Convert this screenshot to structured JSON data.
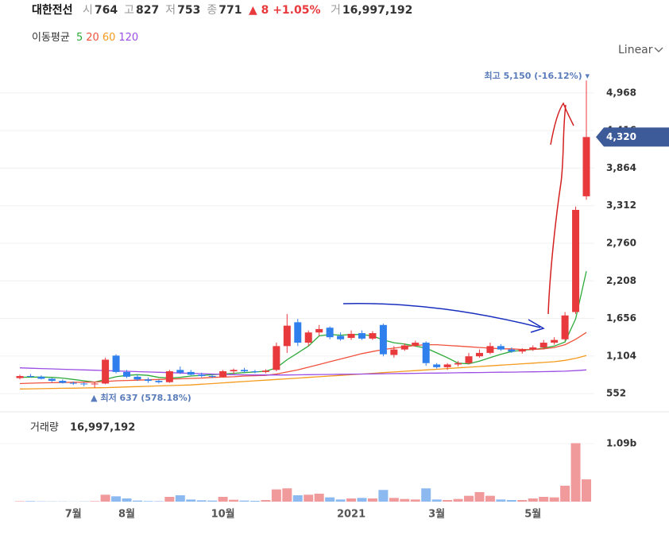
{
  "header": {
    "name": "대한전선",
    "fields": [
      {
        "label": "시",
        "value": "764"
      },
      {
        "label": "고",
        "value": "827"
      },
      {
        "label": "저",
        "value": "753"
      },
      {
        "label": "종",
        "value": "771"
      }
    ],
    "change": "▲ 8 +1.05%",
    "volume": {
      "label": "거",
      "value": "16,997,192"
    }
  },
  "moving_average_label": "이동평균",
  "scale_mode": "Linear",
  "chart_data": [
    {
      "type": "candlestick",
      "categories": [
        null,
        null,
        null,
        null,
        null,
        "7월",
        null,
        null,
        null,
        null,
        "8월",
        null,
        null,
        null,
        null,
        null,
        null,
        null,
        null,
        "10월",
        null,
        null,
        null,
        null,
        null,
        null,
        null,
        null,
        null,
        null,
        null,
        "2021",
        null,
        null,
        null,
        null,
        null,
        null,
        null,
        "3월",
        null,
        null,
        null,
        null,
        null,
        null,
        null,
        null,
        "5월",
        null,
        null,
        null,
        null,
        null
      ],
      "open": [
        780,
        810,
        800,
        770,
        740,
        710,
        700,
        690,
        700,
        1110,
        870,
        800,
        760,
        740,
        720,
        900,
        870,
        830,
        810,
        800,
        880,
        900,
        880,
        870,
        900,
        1250,
        1600,
        1300,
        1450,
        1520,
        1400,
        1370,
        1440,
        1360,
        1560,
        1120,
        1200,
        1260,
        1300,
        980,
        940,
        980,
        1000,
        1100,
        1150,
        1250,
        1200,
        1170,
        1200,
        1230,
        1300,
        1350,
        1750,
        3450
      ],
      "high": [
        830,
        840,
        820,
        780,
        760,
        730,
        720,
        720,
        1080,
        1130,
        900,
        830,
        790,
        760,
        900,
        950,
        900,
        860,
        830,
        900,
        920,
        930,
        900,
        910,
        1300,
        1720,
        1650,
        1480,
        1560,
        1540,
        1450,
        1480,
        1480,
        1470,
        1580,
        1250,
        1290,
        1330,
        1320,
        1000,
        1000,
        1030,
        1150,
        1200,
        1300,
        1280,
        1230,
        1220,
        1260,
        1340,
        1380,
        1750,
        3300,
        5150
      ],
      "low": [
        760,
        790,
        760,
        720,
        700,
        680,
        660,
        637,
        690,
        850,
        780,
        740,
        710,
        700,
        710,
        840,
        820,
        790,
        780,
        790,
        840,
        860,
        850,
        850,
        880,
        1150,
        1250,
        1250,
        1400,
        1350,
        1330,
        1340,
        1340,
        1340,
        1100,
        1080,
        1180,
        1240,
        960,
        920,
        900,
        950,
        980,
        1080,
        1130,
        1180,
        1150,
        1140,
        1180,
        1200,
        1270,
        1330,
        1720,
        3400
      ],
      "close": [
        810,
        800,
        770,
        740,
        710,
        700,
        690,
        700,
        1050,
        870,
        800,
        760,
        740,
        720,
        880,
        860,
        830,
        810,
        800,
        880,
        900,
        880,
        870,
        890,
        1250,
        1550,
        1300,
        1450,
        1500,
        1380,
        1350,
        1430,
        1360,
        1440,
        1130,
        1200,
        1260,
        1300,
        1000,
        940,
        980,
        1000,
        1100,
        1150,
        1250,
        1200,
        1170,
        1200,
        1230,
        1300,
        1340,
        1700,
        3250,
        4320
      ],
      "up_color": "#e8393d",
      "down_color": "#2f80ed",
      "series": [
        {
          "name": "5",
          "color": "#2eaa3a",
          "values": [
            790,
            795,
            795,
            790,
            780,
            760,
            740,
            720,
            760,
            800,
            820,
            830,
            820,
            790,
            780,
            790,
            810,
            820,
            830,
            840,
            850,
            860,
            870,
            880,
            930,
            1050,
            1150,
            1250,
            1400,
            1420,
            1410,
            1420,
            1420,
            1400,
            1340,
            1300,
            1280,
            1250,
            1220,
            1150,
            1080,
            1000,
            990,
            1030,
            1080,
            1130,
            1170,
            1190,
            1200,
            1220,
            1250,
            1310,
            1650,
            2350
          ]
        },
        {
          "name": "20",
          "color": "#f0523c",
          "values": [
            700,
            705,
            710,
            712,
            715,
            718,
            720,
            722,
            730,
            740,
            745,
            750,
            755,
            760,
            765,
            770,
            775,
            780,
            790,
            795,
            800,
            810,
            815,
            820,
            840,
            870,
            900,
            940,
            980,
            1020,
            1060,
            1100,
            1140,
            1170,
            1200,
            1220,
            1240,
            1260,
            1270,
            1270,
            1260,
            1250,
            1240,
            1230,
            1220,
            1210,
            1210,
            1200,
            1200,
            1210,
            1230,
            1270,
            1350,
            1450
          ]
        },
        {
          "name": "60",
          "color": "#f59a1c",
          "values": [
            620,
            622,
            625,
            628,
            630,
            632,
            635,
            638,
            640,
            645,
            650,
            655,
            660,
            665,
            670,
            675,
            680,
            690,
            700,
            710,
            720,
            730,
            740,
            750,
            760,
            770,
            780,
            790,
            800,
            810,
            820,
            830,
            840,
            850,
            860,
            870,
            880,
            890,
            900,
            910,
            920,
            930,
            940,
            950,
            960,
            970,
            980,
            990,
            1000,
            1010,
            1020,
            1040,
            1070,
            1110
          ]
        },
        {
          "name": "120",
          "color": "#9b4ee6",
          "values": [
            930,
            925,
            920,
            915,
            910,
            905,
            900,
            895,
            890,
            885,
            880,
            875,
            870,
            865,
            860,
            855,
            850,
            845,
            840,
            835,
            830,
            828,
            826,
            825,
            825,
            826,
            828,
            830,
            832,
            834,
            836,
            838,
            840,
            842,
            844,
            846,
            848,
            850,
            852,
            854,
            856,
            858,
            860,
            862,
            864,
            866,
            868,
            870,
            872,
            875,
            878,
            882,
            890,
            900
          ]
        }
      ],
      "ylim": [
        320,
        5340
      ],
      "yticks": [
        {
          "value": 552,
          "label": "552"
        },
        {
          "value": 1104,
          "label": "1,104"
        },
        {
          "value": 1656,
          "label": "1,656"
        },
        {
          "value": 2208,
          "label": "2,208"
        },
        {
          "value": 2760,
          "label": "2,760"
        },
        {
          "value": 3312,
          "label": "3,312"
        },
        {
          "value": 3864,
          "label": "3,864"
        },
        {
          "value": 4416,
          "label": "4,416"
        },
        {
          "value": 4968,
          "label": "4,968"
        }
      ],
      "grid": true,
      "high_annotation": "최고 5,150 (-16.12%) ▾",
      "low_annotation": "▲ 최저 637 (578.18%)",
      "current_price": {
        "value": 4320,
        "label": "4,320"
      },
      "current_color": "#3d5a99"
    },
    {
      "type": "bar",
      "title": "거래량",
      "total_label": "16,997,192",
      "values": [
        8000000,
        10000000,
        6000000,
        5000000,
        4000000,
        3000000,
        5000000,
        9000000,
        130000000,
        100000000,
        60000000,
        20000000,
        10000000,
        8000000,
        90000000,
        120000000,
        40000000,
        25000000,
        20000000,
        90000000,
        35000000,
        20000000,
        15000000,
        30000000,
        230000000,
        250000000,
        120000000,
        130000000,
        150000000,
        80000000,
        40000000,
        60000000,
        70000000,
        60000000,
        220000000,
        70000000,
        50000000,
        40000000,
        250000000,
        40000000,
        30000000,
        50000000,
        110000000,
        180000000,
        110000000,
        40000000,
        30000000,
        30000000,
        60000000,
        90000000,
        80000000,
        300000000,
        1100000000,
        420000000
      ],
      "up_color": "#f19a9c",
      "down_color": "#8db9f1",
      "ylim": [
        0,
        1660000000
      ],
      "yticks": [
        {
          "value": 1090000000,
          "label": "1.09b"
        }
      ]
    }
  ]
}
